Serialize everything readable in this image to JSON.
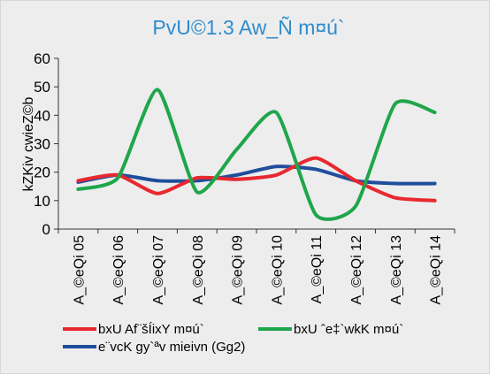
{
  "chart_data": {
    "type": "line",
    "title": "PvU©1.3  Aw_Ñ m¤ú`",
    "ylabel": "kZKiv cwieZ©b",
    "xlabel": "",
    "categories": [
      "A_©eQi 05",
      "A_©eQi 06",
      "A_©eQi 07",
      "A_©eQi 08",
      "A_©eQi 09",
      "A_©eQi 10",
      "A_©eQi 11",
      "A_©eQi 12",
      "A_©eQi 13",
      "A_©eQi 14"
    ],
    "ylim": [
      0,
      60
    ],
    "yticks": [
      "0",
      "10",
      "20",
      "30",
      "40",
      "50",
      "60"
    ],
    "grid": false,
    "legend_position": "bottom",
    "series": [
      {
        "name": "bxU Af¨šÍixY m¤ú`",
        "color": "#e8282f",
        "values": [
          17,
          19,
          12.5,
          18,
          17.5,
          19,
          25,
          17,
          11,
          10
        ]
      },
      {
        "name": "bxU ˆe‡`wkK m¤ú`",
        "color": "#1fa64a",
        "values": [
          14,
          18,
          49,
          13,
          28,
          41,
          5,
          8,
          44,
          41
        ]
      },
      {
        "name": "e¨vcK gy`ªv mieivn (Gg2)",
        "color": "#1f4e9c",
        "values": [
          16.5,
          19,
          17,
          17,
          19,
          22,
          21,
          17,
          16,
          16
        ]
      }
    ]
  }
}
